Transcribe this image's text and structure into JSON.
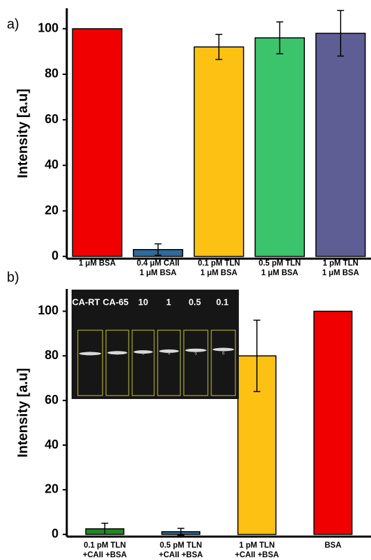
{
  "chart_data": [
    {
      "type": "bar",
      "panel_label": "a)",
      "y_label": "Intensity [a.u]",
      "categories": [
        [
          "1 μM BSA"
        ],
        [
          "0.4 μM CAII",
          "1 μM BSA"
        ],
        [
          "0.1 pM TLN",
          "1 μM BSA"
        ],
        [
          "0.5 pM TLN",
          "1 μM BSA"
        ],
        [
          "1 pM TLN",
          "1 μM BSA"
        ]
      ],
      "values": [
        100,
        3,
        92,
        96,
        98
      ],
      "errors": [
        null,
        2.5,
        5.5,
        7,
        10
      ],
      "colors": [
        "#f00000",
        "#2f6a9c",
        "#fdc113",
        "#3cc46c",
        "#5e5e95"
      ],
      "ylim": [
        -1,
        109
      ],
      "yticks": [
        0,
        20,
        40,
        60,
        80,
        100
      ]
    },
    {
      "type": "bar",
      "panel_label": "b)",
      "y_label": "Intensity [a.u]",
      "categories": [
        [
          "0.1 pM TLN",
          "+CAII +BSA"
        ],
        [
          "0.5 pM TLN",
          "+CAII +BSA"
        ],
        [
          "1 pM TLN",
          "+CAII +BSA"
        ],
        [
          "BSA"
        ]
      ],
      "values": [
        2.5,
        1.2,
        80,
        100
      ],
      "errors": [
        2.5,
        1.5,
        16,
        null
      ],
      "colors": [
        "#1f8a1f",
        "#2f6a9c",
        "#fdc113",
        "#f00000"
      ],
      "ylim": [
        -1,
        110
      ],
      "yticks": [
        0,
        20,
        40,
        60,
        80,
        100
      ],
      "inset_labels": [
        "CA-RT",
        "CA-65",
        "10",
        "1",
        "0.5",
        "0.1"
      ],
      "inset_lane_numbers": [
        "1",
        "2",
        "3",
        "4",
        "5",
        "6"
      ]
    }
  ]
}
